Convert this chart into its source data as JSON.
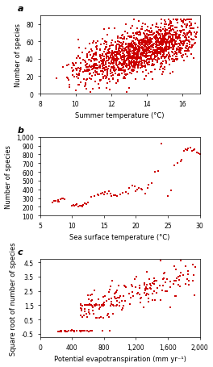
{
  "panel_a": {
    "xlabel": "Summer temperature (°C)",
    "ylabel": "Number of species",
    "xlim": [
      8,
      17
    ],
    "ylim": [
      0,
      90
    ],
    "xticks": [
      8,
      10,
      12,
      14,
      16
    ],
    "yticks": [
      0,
      20,
      40,
      60,
      80
    ],
    "label": "a"
  },
  "panel_b": {
    "xlabel": "Sea surface temperature (°C)",
    "ylabel": "Number of species",
    "xlim": [
      5,
      30
    ],
    "ylim": [
      100,
      1000
    ],
    "xticks": [
      5,
      10,
      15,
      20,
      25,
      30
    ],
    "yticks": [
      100,
      200,
      300,
      400,
      500,
      600,
      700,
      800,
      900,
      1000
    ],
    "yticklabels": [
      "100",
      "200",
      "300",
      "400",
      "500",
      "600",
      "700",
      "800",
      "900",
      "1,000"
    ],
    "label": "b"
  },
  "panel_c": {
    "xlabel": "Potential evapotranspiration (mm yr⁻¹)",
    "ylabel": "Square root of number of species",
    "xlim": [
      0,
      2000
    ],
    "ylim": [
      -0.75,
      4.75
    ],
    "xticks": [
      0,
      400,
      800,
      1200,
      1600,
      2000
    ],
    "xticklabels": [
      "0",
      "400",
      "800",
      "1,200",
      "1,600",
      "2,000"
    ],
    "yticks": [
      -0.5,
      0.5,
      1.5,
      2.5,
      3.5,
      4.5
    ],
    "yticklabels": [
      "-0.5",
      "0.5",
      "1.5",
      "2.5",
      "3.5",
      "4.5"
    ],
    "label": "c"
  },
  "dot_color": "#cc0000",
  "dot_size": 2.5,
  "background_color": "#ffffff",
  "seed": 42
}
